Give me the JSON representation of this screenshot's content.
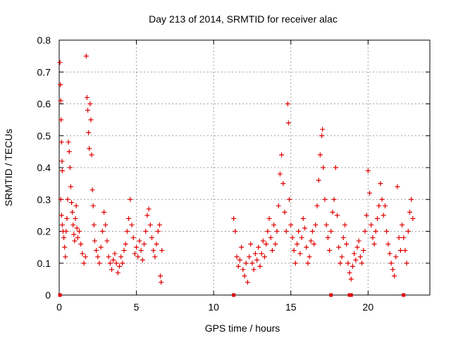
{
  "chart_data": {
    "type": "scatter",
    "title": "Day 213 of 2014, SRMTID for receiver alac",
    "xlabel": "GPS time / hours",
    "ylabel": "SRMTID / TECUs",
    "xlim": [
      0,
      24
    ],
    "ylim": [
      0,
      0.8
    ],
    "xticks": [
      0,
      5,
      10,
      15,
      20
    ],
    "xtick_labels": [
      "0",
      "5",
      "10",
      "15",
      "20"
    ],
    "yticks": [
      0,
      0.1,
      0.2,
      0.3,
      0.4,
      0.5,
      0.6,
      0.7,
      0.8
    ],
    "ytick_labels": [
      "0",
      "0.1",
      "0.2",
      "0.3",
      "0.4",
      "0.5",
      "0.6",
      "0.7",
      "0.8"
    ],
    "grid": true,
    "marker": "+",
    "color": "#e00000",
    "series": [
      {
        "name": "SRMTID",
        "points": [
          [
            0.05,
            0.73
          ],
          [
            0.08,
            0.66
          ],
          [
            0.1,
            0.61
          ],
          [
            0.12,
            0.55
          ],
          [
            0.15,
            0.48
          ],
          [
            0.18,
            0.42
          ],
          [
            0.2,
            0.39
          ],
          [
            0.1,
            0.3
          ],
          [
            0.15,
            0.25
          ],
          [
            0.2,
            0.22
          ],
          [
            0.25,
            0.2
          ],
          [
            0.3,
            0.18
          ],
          [
            0.35,
            0.15
          ],
          [
            0.4,
            0.12
          ],
          [
            0.45,
            0.2
          ],
          [
            0.5,
            0.24
          ],
          [
            0.55,
            0.3
          ],
          [
            0.6,
            0.48
          ],
          [
            0.65,
            0.45
          ],
          [
            0.7,
            0.4
          ],
          [
            0.75,
            0.34
          ],
          [
            0.8,
            0.29
          ],
          [
            0.85,
            0.26
          ],
          [
            0.9,
            0.22
          ],
          [
            0.95,
            0.19
          ],
          [
            1.0,
            0.17
          ],
          [
            1.05,
            0.24
          ],
          [
            1.1,
            0.28
          ],
          [
            1.15,
            0.21
          ],
          [
            1.2,
            0.18
          ],
          [
            1.3,
            0.2
          ],
          [
            1.4,
            0.16
          ],
          [
            1.5,
            0.13
          ],
          [
            1.6,
            0.1
          ],
          [
            1.7,
            0.12
          ],
          [
            1.75,
            0.75
          ],
          [
            1.8,
            0.62
          ],
          [
            1.85,
            0.58
          ],
          [
            1.9,
            0.51
          ],
          [
            1.95,
            0.46
          ],
          [
            2.0,
            0.6
          ],
          [
            2.05,
            0.55
          ],
          [
            2.1,
            0.44
          ],
          [
            2.15,
            0.33
          ],
          [
            2.2,
            0.28
          ],
          [
            2.25,
            0.22
          ],
          [
            2.3,
            0.17
          ],
          [
            2.4,
            0.14
          ],
          [
            2.5,
            0.12
          ],
          [
            2.6,
            0.1
          ],
          [
            2.7,
            0.15
          ],
          [
            2.8,
            0.2
          ],
          [
            2.9,
            0.26
          ],
          [
            3.0,
            0.22
          ],
          [
            3.1,
            0.17
          ],
          [
            3.2,
            0.12
          ],
          [
            3.3,
            0.1
          ],
          [
            3.4,
            0.08
          ],
          [
            3.5,
            0.11
          ],
          [
            3.6,
            0.13
          ],
          [
            3.7,
            0.1
          ],
          [
            3.8,
            0.07
          ],
          [
            3.9,
            0.09
          ],
          [
            4.0,
            0.12
          ],
          [
            4.1,
            0.1
          ],
          [
            4.2,
            0.14
          ],
          [
            4.3,
            0.16
          ],
          [
            4.4,
            0.2
          ],
          [
            4.5,
            0.24
          ],
          [
            4.6,
            0.3
          ],
          [
            4.7,
            0.22
          ],
          [
            4.8,
            0.18
          ],
          [
            4.9,
            0.13
          ],
          [
            5.0,
            0.15
          ],
          [
            5.1,
            0.12
          ],
          [
            5.2,
            0.17
          ],
          [
            5.3,
            0.14
          ],
          [
            5.4,
            0.11
          ],
          [
            5.5,
            0.16
          ],
          [
            5.6,
            0.2
          ],
          [
            5.7,
            0.25
          ],
          [
            5.8,
            0.27
          ],
          [
            5.9,
            0.22
          ],
          [
            6.0,
            0.18
          ],
          [
            6.1,
            0.14
          ],
          [
            6.2,
            0.12
          ],
          [
            6.3,
            0.16
          ],
          [
            6.4,
            0.2
          ],
          [
            6.5,
            0.22
          ],
          [
            6.55,
            0.06
          ],
          [
            6.6,
            0.04
          ],
          [
            6.65,
            0.14
          ],
          [
            11.3,
            0.24
          ],
          [
            11.4,
            0.2
          ],
          [
            11.5,
            0.12
          ],
          [
            11.6,
            0.09
          ],
          [
            11.7,
            0.11
          ],
          [
            11.8,
            0.15
          ],
          [
            11.9,
            0.08
          ],
          [
            12.0,
            0.06
          ],
          [
            12.1,
            0.1
          ],
          [
            12.2,
            0.04
          ],
          [
            12.3,
            0.12
          ],
          [
            12.4,
            0.16
          ],
          [
            12.5,
            0.1
          ],
          [
            12.6,
            0.08
          ],
          [
            12.7,
            0.13
          ],
          [
            12.8,
            0.11
          ],
          [
            12.9,
            0.15
          ],
          [
            13.0,
            0.09
          ],
          [
            13.1,
            0.13
          ],
          [
            13.2,
            0.17
          ],
          [
            13.3,
            0.12
          ],
          [
            13.4,
            0.16
          ],
          [
            13.5,
            0.2
          ],
          [
            13.6,
            0.24
          ],
          [
            13.7,
            0.18
          ],
          [
            13.8,
            0.14
          ],
          [
            13.9,
            0.22
          ],
          [
            14.0,
            0.16
          ],
          [
            14.1,
            0.2
          ],
          [
            14.2,
            0.28
          ],
          [
            14.3,
            0.38
          ],
          [
            14.4,
            0.44
          ],
          [
            14.5,
            0.35
          ],
          [
            14.6,
            0.26
          ],
          [
            14.7,
            0.2
          ],
          [
            14.8,
            0.6
          ],
          [
            14.85,
            0.54
          ],
          [
            14.9,
            0.3
          ],
          [
            15.0,
            0.22
          ],
          [
            15.1,
            0.18
          ],
          [
            15.2,
            0.14
          ],
          [
            15.3,
            0.1
          ],
          [
            15.4,
            0.16
          ],
          [
            15.5,
            0.2
          ],
          [
            15.6,
            0.13
          ],
          [
            15.7,
            0.18
          ],
          [
            15.8,
            0.24
          ],
          [
            15.9,
            0.21
          ],
          [
            16.0,
            0.15
          ],
          [
            16.1,
            0.1
          ],
          [
            16.2,
            0.12
          ],
          [
            16.3,
            0.17
          ],
          [
            16.4,
            0.2
          ],
          [
            16.5,
            0.16
          ],
          [
            16.6,
            0.22
          ],
          [
            16.7,
            0.28
          ],
          [
            16.8,
            0.36
          ],
          [
            16.9,
            0.44
          ],
          [
            17.0,
            0.5
          ],
          [
            17.05,
            0.52
          ],
          [
            17.1,
            0.4
          ],
          [
            17.2,
            0.3
          ],
          [
            17.3,
            0.22
          ],
          [
            17.4,
            0.18
          ],
          [
            17.5,
            0.14
          ],
          [
            17.6,
            0.2
          ],
          [
            17.7,
            0.26
          ],
          [
            17.8,
            0.3
          ],
          [
            17.9,
            0.4
          ],
          [
            18.0,
            0.25
          ],
          [
            18.1,
            0.15
          ],
          [
            18.2,
            0.1
          ],
          [
            18.3,
            0.12
          ],
          [
            18.4,
            0.18
          ],
          [
            18.5,
            0.22
          ],
          [
            18.6,
            0.16
          ],
          [
            18.7,
            0.1
          ],
          [
            18.8,
            0.07
          ],
          [
            18.9,
            0.05
          ],
          [
            19.0,
            0.09
          ],
          [
            19.1,
            0.13
          ],
          [
            19.2,
            0.11
          ],
          [
            19.3,
            0.15
          ],
          [
            19.4,
            0.17
          ],
          [
            19.5,
            0.12
          ],
          [
            19.6,
            0.1
          ],
          [
            19.7,
            0.14
          ],
          [
            19.8,
            0.2
          ],
          [
            19.9,
            0.25
          ],
          [
            20.0,
            0.39
          ],
          [
            20.1,
            0.32
          ],
          [
            20.2,
            0.22
          ],
          [
            20.3,
            0.18
          ],
          [
            20.4,
            0.16
          ],
          [
            20.5,
            0.2
          ],
          [
            20.6,
            0.24
          ],
          [
            20.7,
            0.28
          ],
          [
            20.8,
            0.35
          ],
          [
            20.9,
            0.3
          ],
          [
            21.0,
            0.25
          ],
          [
            21.1,
            0.28
          ],
          [
            21.2,
            0.2
          ],
          [
            21.3,
            0.16
          ],
          [
            21.4,
            0.13
          ],
          [
            21.5,
            0.1
          ],
          [
            21.6,
            0.08
          ],
          [
            21.7,
            0.06
          ],
          [
            21.8,
            0.12
          ],
          [
            21.9,
            0.34
          ],
          [
            22.0,
            0.18
          ],
          [
            22.1,
            0.14
          ],
          [
            22.2,
            0.22
          ],
          [
            22.3,
            0.18
          ],
          [
            22.4,
            0.14
          ],
          [
            22.5,
            0.1
          ],
          [
            22.6,
            0.2
          ],
          [
            22.7,
            0.26
          ],
          [
            22.8,
            0.3
          ],
          [
            22.9,
            0.24
          ]
        ]
      }
    ],
    "zero_markers_x": [
      0.05,
      11.3,
      17.6,
      18.8,
      18.9,
      22.3
    ]
  }
}
